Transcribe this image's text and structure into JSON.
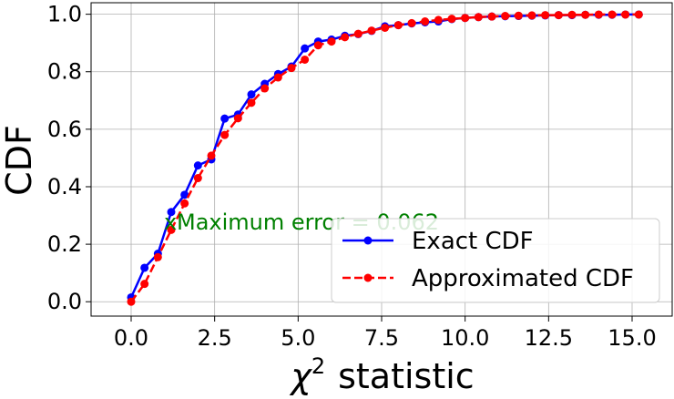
{
  "chart_data": {
    "type": "line",
    "xlabel": "statistic",
    "xlabel_symbol": "χ",
    "xlabel_superscript": "2",
    "ylabel": "CDF",
    "xlim": [
      -1.2,
      16.2
    ],
    "ylim": [
      -0.05,
      1.04
    ],
    "x_ticks": [
      "0.0",
      "2.5",
      "5.0",
      "7.5",
      "10.0",
      "12.5",
      "15.0"
    ],
    "y_ticks": [
      "0.0",
      "0.2",
      "0.4",
      "0.6",
      "0.8",
      "1.0"
    ],
    "grid": true,
    "legend_position": "lower-right",
    "series": [
      {
        "name": "Exact CDF",
        "color": "#0000ff",
        "linestyle": "solid",
        "x": [
          0.0,
          0.4,
          0.8,
          1.2,
          1.6,
          2.0,
          2.4,
          2.8,
          3.2,
          3.6,
          4.0,
          4.4,
          4.8,
          5.2,
          5.6,
          6.0,
          6.4,
          6.8,
          7.2,
          7.6,
          8.0,
          8.4,
          8.8,
          9.2,
          9.6,
          10.0,
          10.4,
          10.8,
          11.2,
          11.6,
          12.0,
          12.4,
          12.8,
          13.2,
          13.6,
          14.0,
          14.4,
          14.8,
          15.2
        ],
        "values": [
          0.015,
          0.118,
          0.167,
          0.312,
          0.372,
          0.474,
          0.495,
          0.637,
          0.651,
          0.721,
          0.758,
          0.792,
          0.818,
          0.881,
          0.905,
          0.912,
          0.925,
          0.931,
          0.942,
          0.958,
          0.962,
          0.968,
          0.972,
          0.975,
          0.983,
          0.987,
          0.99,
          0.992,
          0.993,
          0.994,
          0.995,
          0.996,
          0.997,
          0.997,
          0.998,
          0.998,
          0.998,
          0.999,
          0.999
        ]
      },
      {
        "name": "Approximated CDF",
        "color": "#ff0000",
        "linestyle": "dashed",
        "x": [
          0.0,
          0.4,
          0.8,
          1.2,
          1.6,
          2.0,
          2.4,
          2.8,
          3.2,
          3.6,
          4.0,
          4.4,
          4.8,
          5.2,
          5.6,
          6.0,
          6.4,
          6.8,
          7.2,
          7.6,
          8.0,
          8.4,
          8.8,
          9.2,
          9.6,
          10.0,
          10.4,
          10.8,
          11.2,
          11.6,
          12.0,
          12.4,
          12.8,
          13.2,
          13.6,
          14.0,
          14.4,
          14.8,
          15.2
        ],
        "values": [
          0.0,
          0.062,
          0.155,
          0.25,
          0.342,
          0.43,
          0.508,
          0.58,
          0.638,
          0.692,
          0.742,
          0.78,
          0.813,
          0.842,
          0.892,
          0.905,
          0.92,
          0.932,
          0.943,
          0.953,
          0.962,
          0.969,
          0.975,
          0.98,
          0.984,
          0.987,
          0.99,
          0.992,
          0.994,
          0.995,
          0.996,
          0.997,
          0.997,
          0.998,
          0.998,
          0.999,
          0.999,
          0.999,
          0.999
        ]
      }
    ],
    "annotation": {
      "marker": "x",
      "text": "Maximum error = 0.062",
      "x": 1.2,
      "y": 0.28,
      "color": "#008000"
    }
  }
}
